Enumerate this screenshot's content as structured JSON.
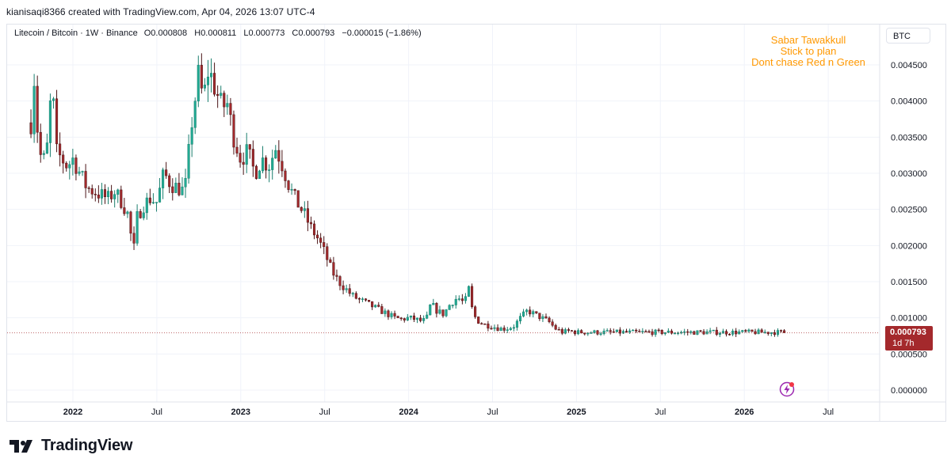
{
  "header": {
    "byline": "kianisaqi8366 created with TradingView.com, Apr 04, 2026 13:07 UTC-4"
  },
  "legend": {
    "symbol": "Litecoin / Bitcoin",
    "interval": "1W",
    "exchange": "Binance",
    "open_label": "O",
    "open": "0.000808",
    "high_label": "H",
    "high": "0.000811",
    "low_label": "L",
    "low": "0.000773",
    "close_label": "C",
    "close": "0.000793",
    "change": "−0.000015 (−1.86%)"
  },
  "note": {
    "line1": "Sabar Tawakkull",
    "line2": "Stick to plan",
    "line3": "Dont chase Red n Green",
    "color": "#ff9800"
  },
  "scale": {
    "currency": "BTC"
  },
  "last_price": {
    "value": "0.000793",
    "countdown": "1d 7h",
    "color": "#a4292c"
  },
  "brand": {
    "name": "TradingView"
  },
  "colors": {
    "up": "#22ab94",
    "down": "#a4292c",
    "grid": "#f0f3fa",
    "text": "#131722"
  },
  "chart_data": {
    "type": "candlestick",
    "y_ticks": [
      "0.004500",
      "0.004000",
      "0.003500",
      "0.003000",
      "0.002500",
      "0.002000",
      "0.001500",
      "0.001000",
      "0.000500",
      "0.000000"
    ],
    "ylim": [
      0.0,
      0.00475
    ],
    "x_ticks": [
      {
        "label": "2022",
        "month": 0
      },
      {
        "label": "Jul",
        "month": 6
      },
      {
        "label": "2023",
        "month": 12
      },
      {
        "label": "Jul",
        "month": 18
      },
      {
        "label": "2024",
        "month": 24
      },
      {
        "label": "Jul",
        "month": 30
      },
      {
        "label": "2025",
        "month": 36
      },
      {
        "label": "Jul",
        "month": 42
      },
      {
        "label": "2026",
        "month": 48
      },
      {
        "label": "Jul",
        "month": 54
      }
    ],
    "grid": true,
    "last_close": 0.000793,
    "path_start_month": -3.0,
    "path_end_month": 51.0,
    "close_path": [
      [
        -3.0,
        0.0037
      ],
      [
        -2.8,
        0.0044
      ],
      [
        -2.5,
        0.0035
      ],
      [
        -2.2,
        0.0031
      ],
      [
        -1.8,
        0.0034
      ],
      [
        -1.5,
        0.0043
      ],
      [
        -1.2,
        0.0033
      ],
      [
        -0.8,
        0.0032
      ],
      [
        -0.4,
        0.0031
      ],
      [
        0.0,
        0.0032
      ],
      [
        0.5,
        0.003
      ],
      [
        1.0,
        0.0028
      ],
      [
        1.5,
        0.00275
      ],
      [
        2.0,
        0.0027
      ],
      [
        2.5,
        0.00265
      ],
      [
        3.0,
        0.00275
      ],
      [
        3.5,
        0.0026
      ],
      [
        4.0,
        0.0024
      ],
      [
        4.3,
        0.00185
      ],
      [
        4.6,
        0.0024
      ],
      [
        5.0,
        0.00255
      ],
      [
        5.5,
        0.00265
      ],
      [
        6.0,
        0.0026
      ],
      [
        6.5,
        0.003
      ],
      [
        7.0,
        0.00285
      ],
      [
        7.5,
        0.0028
      ],
      [
        8.0,
        0.00275
      ],
      [
        8.5,
        0.0037
      ],
      [
        9.0,
        0.0044
      ],
      [
        9.3,
        0.004
      ],
      [
        9.7,
        0.00445
      ],
      [
        10.2,
        0.00415
      ],
      [
        10.7,
        0.0039
      ],
      [
        11.0,
        0.004
      ],
      [
        11.5,
        0.0035
      ],
      [
        12.0,
        0.0032
      ],
      [
        12.5,
        0.0033
      ],
      [
        13.0,
        0.003
      ],
      [
        13.5,
        0.0032
      ],
      [
        14.0,
        0.0031
      ],
      [
        14.5,
        0.00335
      ],
      [
        15.0,
        0.0031
      ],
      [
        15.5,
        0.0028
      ],
      [
        16.0,
        0.0026
      ],
      [
        16.5,
        0.00245
      ],
      [
        17.0,
        0.00225
      ],
      [
        17.5,
        0.0021
      ],
      [
        18.0,
        0.0019
      ],
      [
        18.5,
        0.00165
      ],
      [
        19.0,
        0.0015
      ],
      [
        19.5,
        0.0014
      ],
      [
        20.0,
        0.0013
      ],
      [
        20.5,
        0.00125
      ],
      [
        21.0,
        0.0012
      ],
      [
        21.5,
        0.00115
      ],
      [
        22.0,
        0.0011
      ],
      [
        22.5,
        0.00105
      ],
      [
        23.0,
        0.001
      ],
      [
        23.5,
        0.00098
      ],
      [
        24.0,
        0.001
      ],
      [
        24.5,
        0.00098
      ],
      [
        25.0,
        0.00095
      ],
      [
        25.3,
        0.001
      ],
      [
        25.6,
        0.0012
      ],
      [
        26.0,
        0.0011
      ],
      [
        26.5,
        0.00105
      ],
      [
        27.0,
        0.0012
      ],
      [
        27.5,
        0.00128
      ],
      [
        28.0,
        0.0012
      ],
      [
        28.3,
        0.0014
      ],
      [
        28.6,
        0.00105
      ],
      [
        29.0,
        0.00095
      ],
      [
        29.5,
        0.0009
      ],
      [
        30.0,
        0.00088
      ],
      [
        30.5,
        0.00085
      ],
      [
        31.0,
        0.00085
      ],
      [
        31.5,
        0.00088
      ],
      [
        32.0,
        0.001
      ],
      [
        32.5,
        0.0011
      ],
      [
        33.0,
        0.00105
      ],
      [
        33.5,
        0.001
      ],
      [
        34.0,
        0.00095
      ],
      [
        34.5,
        0.00085
      ],
      [
        35.0,
        0.0008
      ],
      [
        35.5,
        0.00082
      ],
      [
        36.0,
        0.0008
      ]
    ]
  }
}
